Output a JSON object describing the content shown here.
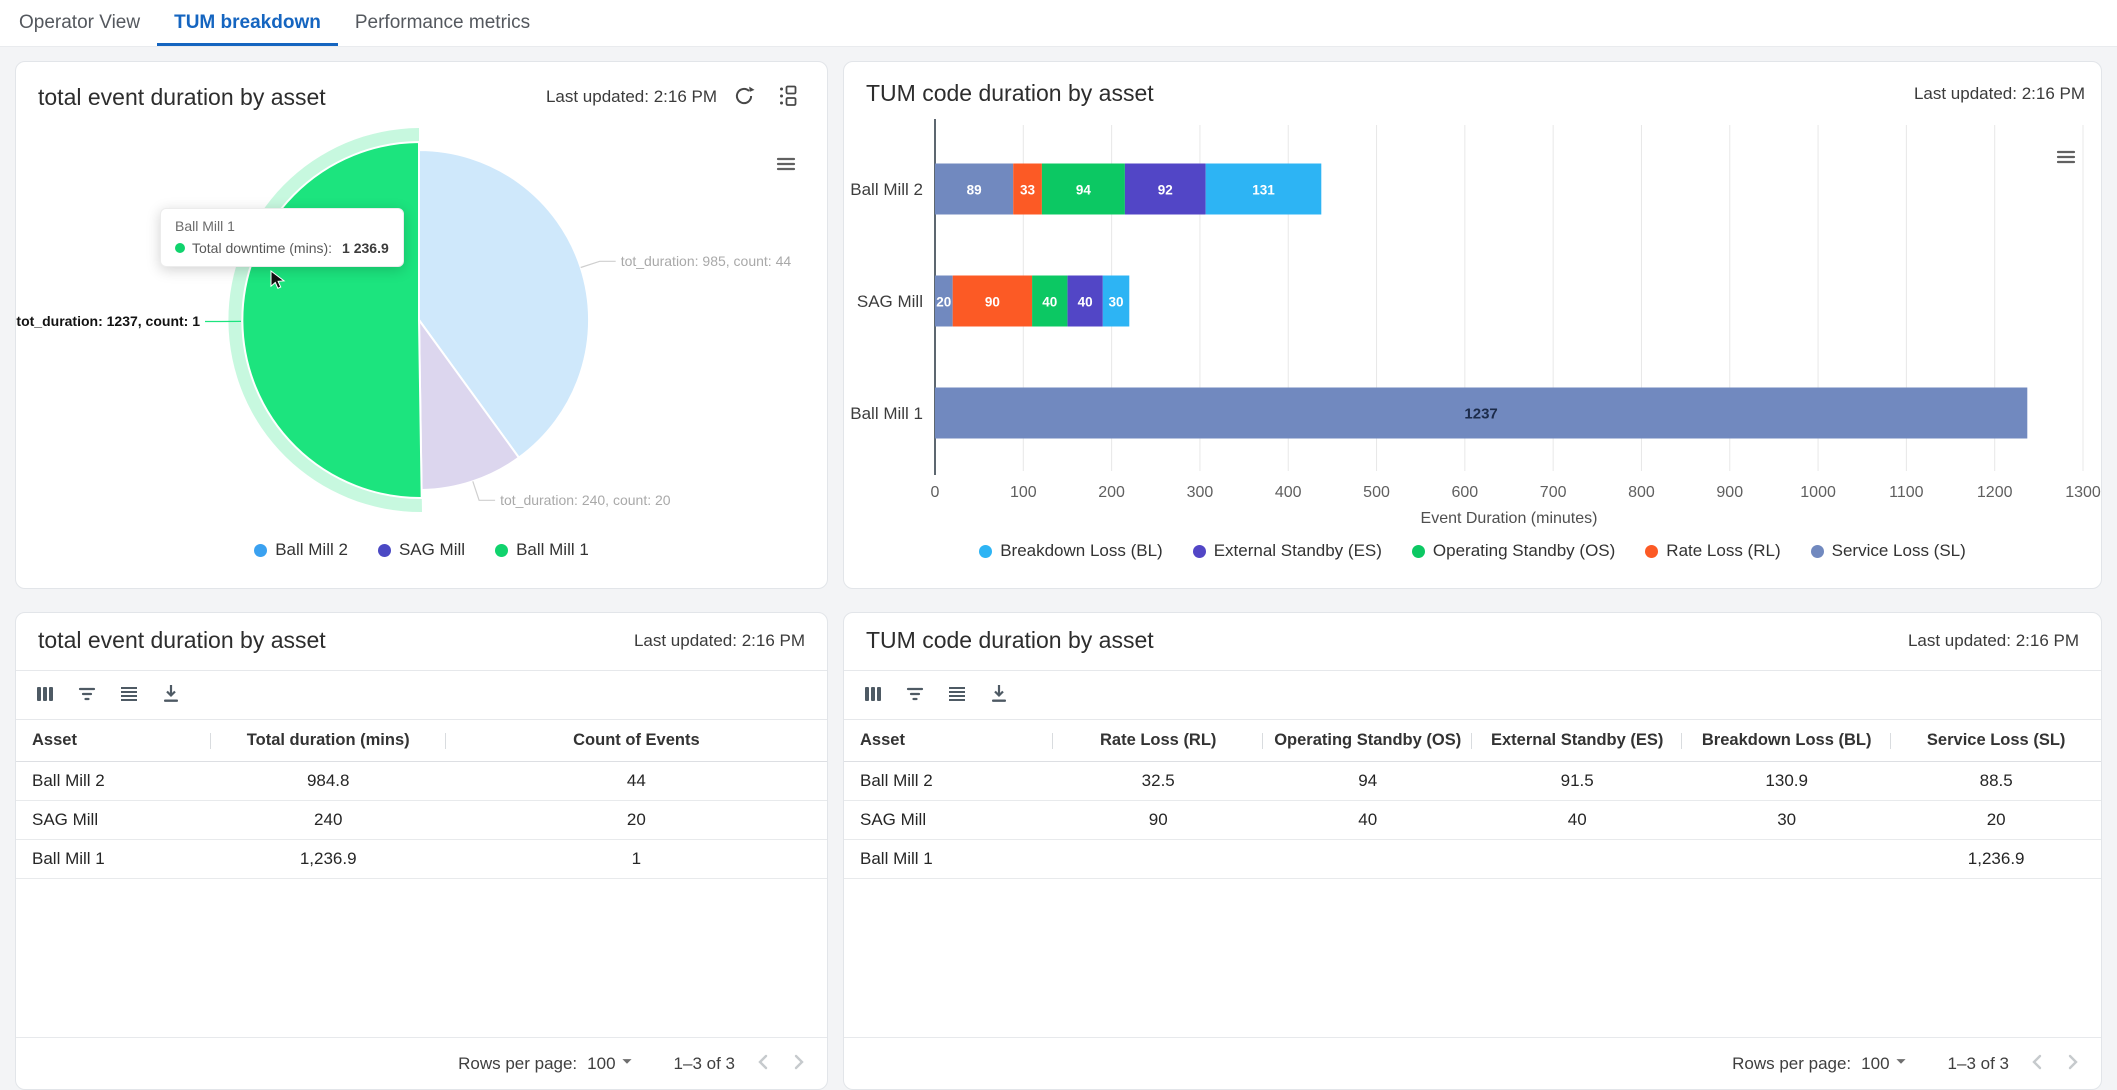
{
  "tabs": [
    {
      "label": "Operator View",
      "active": false
    },
    {
      "label": "TUM breakdown",
      "active": true
    },
    {
      "label": "Performance metrics",
      "active": false
    }
  ],
  "colors": {
    "active_tab": "#1565c0"
  },
  "pie_panel": {
    "title": "total event duration by asset",
    "last_updated": "Last updated: 2:16 PM",
    "tooltip": {
      "title": "Ball Mill 1",
      "series_label": "Total downtime (mins):",
      "value": "1 236.9"
    }
  },
  "bar_panel": {
    "title": "TUM code duration by asset",
    "last_updated": "Last updated: 2:16 PM"
  },
  "left_table": {
    "title": "total event duration by asset",
    "last_updated": "Last updated: 2:16 PM",
    "columns": [
      "Asset",
      "Total duration (mins)",
      "Count of Events"
    ],
    "rows": [
      [
        "Ball Mill 2",
        "984.8",
        "44"
      ],
      [
        "SAG Mill",
        "240",
        "20"
      ],
      [
        "Ball Mill 1",
        "1,236.9",
        "1"
      ]
    ],
    "footer": {
      "rows_per_page_label": "Rows per page:",
      "rows_per_page": "100",
      "range": "1–3 of 3"
    }
  },
  "right_table": {
    "title": "TUM code duration by asset",
    "last_updated": "Last updated: 2:16 PM",
    "columns": [
      "Asset",
      "Rate Loss (RL)",
      "Operating Standby (OS)",
      "External Standby (ES)",
      "Breakdown Loss (BL)",
      "Service Loss (SL)"
    ],
    "rows": [
      [
        "Ball Mill 2",
        "32.5",
        "94",
        "91.5",
        "130.9",
        "88.5"
      ],
      [
        "SAG Mill",
        "90",
        "40",
        "40",
        "30",
        "20"
      ],
      [
        "Ball Mill 1",
        "",
        "",
        "",
        "",
        "1,236.9"
      ]
    ],
    "footer": {
      "rows_per_page_label": "Rows per page:",
      "rows_per_page": "100",
      "range": "1–3 of 3"
    }
  },
  "chart_data": [
    {
      "type": "pie",
      "title": "total event duration by asset",
      "start_angle_deg": -90,
      "clockwise": true,
      "slices": [
        {
          "name": "Ball Mill 2",
          "value": 984.8,
          "count": 44,
          "color": "#cfe8fb",
          "legend_color": "#3aa1f0",
          "callout": "tot_duration: 985, count: 44",
          "emphasis": false
        },
        {
          "name": "SAG Mill",
          "value": 240,
          "count": 20,
          "color": "#dcd6ee",
          "legend_color": "#4b49c4",
          "callout": "tot_duration: 240, count: 20",
          "emphasis": false
        },
        {
          "name": "Ball Mill 1",
          "value": 1236.9,
          "count": 1,
          "color": "#1ce47e",
          "legend_color": "#10d36d",
          "callout": "tot_duration: 1237, count: 1",
          "emphasis": true
        }
      ],
      "legend_position": "bottom"
    },
    {
      "type": "bar",
      "stacked": true,
      "orientation": "horizontal",
      "title": "TUM code duration by asset",
      "categories": [
        "Ball Mill 2",
        "SAG Mill",
        "Ball Mill 1"
      ],
      "series": [
        {
          "name": "Service Loss (SL)",
          "color": "#7189bf",
          "values": [
            88.5,
            20,
            1236.9
          ]
        },
        {
          "name": "Rate Loss (RL)",
          "color": "#fc5a25",
          "values": [
            32.5,
            90,
            0
          ]
        },
        {
          "name": "Operating Standby (OS)",
          "color": "#0cc863",
          "values": [
            94,
            40,
            0
          ]
        },
        {
          "name": "External Standby (ES)",
          "color": "#5246c6",
          "values": [
            91.5,
            40,
            0
          ]
        },
        {
          "name": "Breakdown Loss (BL)",
          "color": "#2db4f4",
          "values": [
            130.9,
            30,
            0
          ]
        }
      ],
      "legend": [
        {
          "label": "Breakdown Loss (BL)",
          "color": "#2db4f4"
        },
        {
          "label": "External Standby (ES)",
          "color": "#5246c6"
        },
        {
          "label": "Operating Standby (OS)",
          "color": "#0cc863"
        },
        {
          "label": "Rate Loss (RL)",
          "color": "#fc5a25"
        },
        {
          "label": "Service Loss (SL)",
          "color": "#7189bf"
        }
      ],
      "xlabel": "Event Duration (minutes)",
      "xlim": [
        0,
        1300
      ],
      "xtick_step": 100,
      "grid": true,
      "legend_position": "bottom"
    }
  ],
  "icons": {
    "refresh": "circular-arrow",
    "customize": "dots-and-squares",
    "chart_menu": "hamburger-lines",
    "columns": "three-vertical-bars",
    "filter": "filter-lines",
    "density": "four-horizontal-lines",
    "download": "arrow-down-tray",
    "rows_select_caret": "caret-down",
    "page_prev": "chevron-left",
    "page_next": "chevron-right",
    "cursor": "mouse-pointer"
  }
}
